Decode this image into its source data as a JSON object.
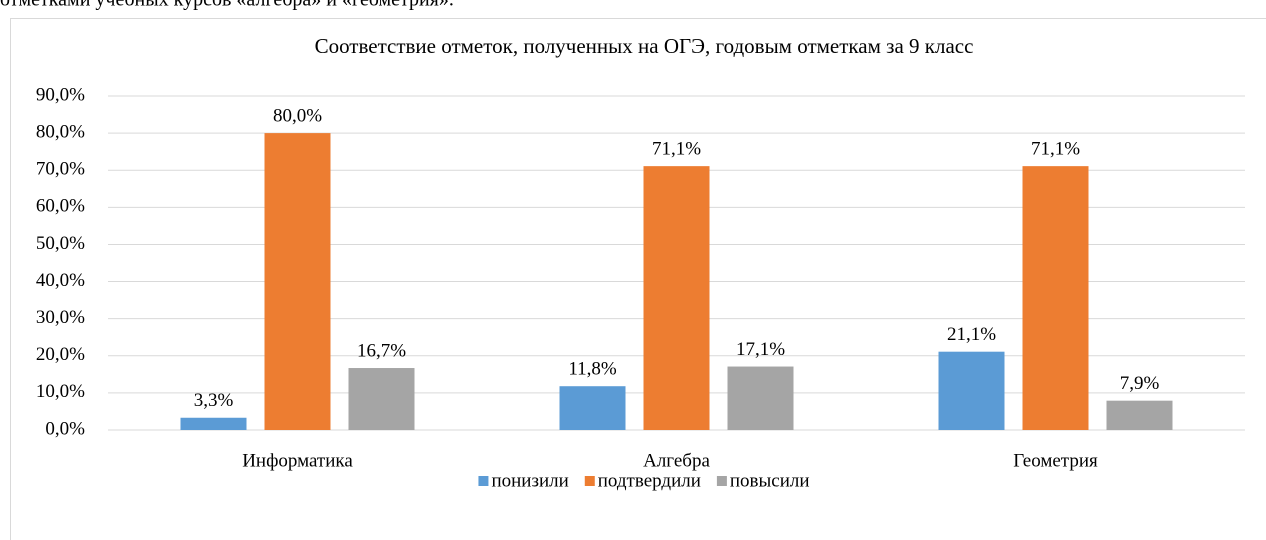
{
  "header_text": "отметками учебных курсов «алгебра» и «геометрия».",
  "chart_data": {
    "type": "bar",
    "title": "Соответствие отметок, полученных на ОГЭ, годовым отметкам за 9 класс",
    "categories": [
      "Информатика",
      "Алгебра",
      "Геометрия"
    ],
    "series": [
      {
        "name": "понизили",
        "color": "#5b9bd5",
        "values": [
          3.3,
          11.8,
          21.1
        ],
        "value_labels": [
          "3,3%",
          "11,8%",
          "21,1%"
        ]
      },
      {
        "name": "подтвердили",
        "color": "#ed7d31",
        "values": [
          80.0,
          71.1,
          71.1
        ],
        "value_labels": [
          "80,0%",
          "71,1%",
          "71,1%"
        ]
      },
      {
        "name": "повысили",
        "color": "#a5a5a5",
        "values": [
          16.7,
          17.1,
          7.9
        ],
        "value_labels": [
          "16,7%",
          "17,1%",
          "7,9%"
        ]
      }
    ],
    "ylim": [
      0,
      90
    ],
    "yticks": [
      {
        "value": 0,
        "label": "0,0%"
      },
      {
        "value": 10,
        "label": "10,0%"
      },
      {
        "value": 20,
        "label": "20,0%"
      },
      {
        "value": 30,
        "label": "30,0%"
      },
      {
        "value": 40,
        "label": "40,0%"
      },
      {
        "value": 50,
        "label": "50,0%"
      },
      {
        "value": 60,
        "label": "60,0%"
      },
      {
        "value": 70,
        "label": "70,0%"
      },
      {
        "value": 80,
        "label": "80,0%"
      },
      {
        "value": 90,
        "label": "90,0%"
      }
    ],
    "grid": true,
    "legend": "bottom"
  }
}
